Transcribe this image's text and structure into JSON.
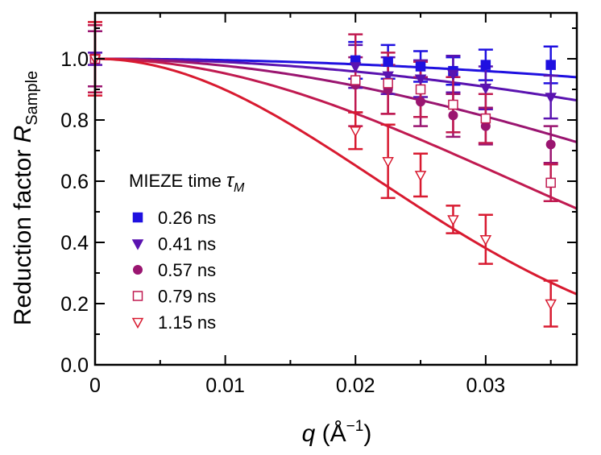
{
  "chart_data": {
    "type": "scatter",
    "xlabel_italic": "q",
    "xlabel_unit": "(Å",
    "xlabel_exp": "−1",
    "xlabel_close": ")",
    "ylabel_text": "Reduction factor ",
    "ylabel_italic": "R",
    "ylabel_sub": "Sample",
    "xlim": [
      0,
      0.037
    ],
    "ylim": [
      0,
      1.15
    ],
    "x_ticks": [
      0,
      0.01,
      0.02,
      0.03
    ],
    "x_tick_labels": [
      "0",
      "0.01",
      "0.02",
      "0.03"
    ],
    "y_ticks": [
      0,
      0.2,
      0.4,
      0.6,
      0.8,
      1.0
    ],
    "y_tick_labels": [
      "0.0",
      "0.2",
      "0.4",
      "0.6",
      "0.8",
      "1.0"
    ],
    "legend_title_prefix": "MIEZE time ",
    "legend_title_symbol": "τ",
    "legend_title_sub": "M",
    "legend_position": "center-left",
    "series": [
      {
        "name": "0.26 ns",
        "color": "#1f10e0",
        "marker": "square-filled",
        "fit_sigma": 0.105,
        "points": [
          {
            "x": 0,
            "y": 1.0,
            "err": 0.0
          },
          {
            "x": 0.02,
            "y": 0.995,
            "err": 0.06
          },
          {
            "x": 0.0225,
            "y": 0.99,
            "err": 0.055
          },
          {
            "x": 0.025,
            "y": 0.975,
            "err": 0.05
          },
          {
            "x": 0.0275,
            "y": 0.96,
            "err": 0.045
          },
          {
            "x": 0.03,
            "y": 0.98,
            "err": 0.05
          },
          {
            "x": 0.035,
            "y": 0.98,
            "err": 0.06
          }
        ]
      },
      {
        "name": "0.41 ns",
        "color": "#5a13b0",
        "marker": "triangle-down-filled",
        "fit_sigma": 0.0685,
        "points": [
          {
            "x": 0,
            "y": 1.0,
            "err": 0.02
          },
          {
            "x": 0.02,
            "y": 0.975,
            "err": 0.07
          },
          {
            "x": 0.0225,
            "y": 0.945,
            "err": 0.06
          },
          {
            "x": 0.025,
            "y": 0.935,
            "err": 0.06
          },
          {
            "x": 0.0275,
            "y": 0.95,
            "err": 0.06
          },
          {
            "x": 0.03,
            "y": 0.905,
            "err": 0.07
          },
          {
            "x": 0.035,
            "y": 0.875,
            "err": 0.07
          }
        ]
      },
      {
        "name": "0.57 ns",
        "color": "#9a1570",
        "marker": "circle-filled",
        "fit_sigma": 0.0464,
        "points": [
          {
            "x": 0,
            "y": 1.0,
            "err": 0.09
          },
          {
            "x": 0.02,
            "y": 0.915,
            "err": 0.09
          },
          {
            "x": 0.0225,
            "y": 0.9,
            "err": 0.08
          },
          {
            "x": 0.025,
            "y": 0.86,
            "err": 0.08
          },
          {
            "x": 0.0275,
            "y": 0.815,
            "err": 0.07
          },
          {
            "x": 0.03,
            "y": 0.78,
            "err": 0.06
          },
          {
            "x": 0.035,
            "y": 0.72,
            "err": 0.06
          }
        ]
      },
      {
        "name": "0.79 ns",
        "color": "#c01a50",
        "marker": "square-open",
        "fit_sigma": 0.0319,
        "points": [
          {
            "x": 0,
            "y": 1.0,
            "err": 0.11
          },
          {
            "x": 0.02,
            "y": 0.93,
            "err": 0.15
          },
          {
            "x": 0.0225,
            "y": 0.92,
            "err": 0.1
          },
          {
            "x": 0.025,
            "y": 0.9,
            "err": 0.09
          },
          {
            "x": 0.0275,
            "y": 0.85,
            "err": 0.09
          },
          {
            "x": 0.03,
            "y": 0.805,
            "err": 0.08
          },
          {
            "x": 0.035,
            "y": 0.595,
            "err": 0.06
          }
        ]
      },
      {
        "name": "1.15 ns",
        "color": "#d81a30",
        "marker": "triangle-down-open",
        "fit_sigma": 0.0216,
        "points": [
          {
            "x": 0,
            "y": 1.0,
            "err": 0.12
          },
          {
            "x": 0.02,
            "y": 0.765,
            "err": 0.06
          },
          {
            "x": 0.0225,
            "y": 0.665,
            "err": 0.12
          },
          {
            "x": 0.025,
            "y": 0.62,
            "err": 0.07
          },
          {
            "x": 0.0275,
            "y": 0.475,
            "err": 0.045
          },
          {
            "x": 0.03,
            "y": 0.41,
            "err": 0.08
          },
          {
            "x": 0.035,
            "y": 0.2,
            "err": 0.075
          }
        ]
      }
    ]
  }
}
